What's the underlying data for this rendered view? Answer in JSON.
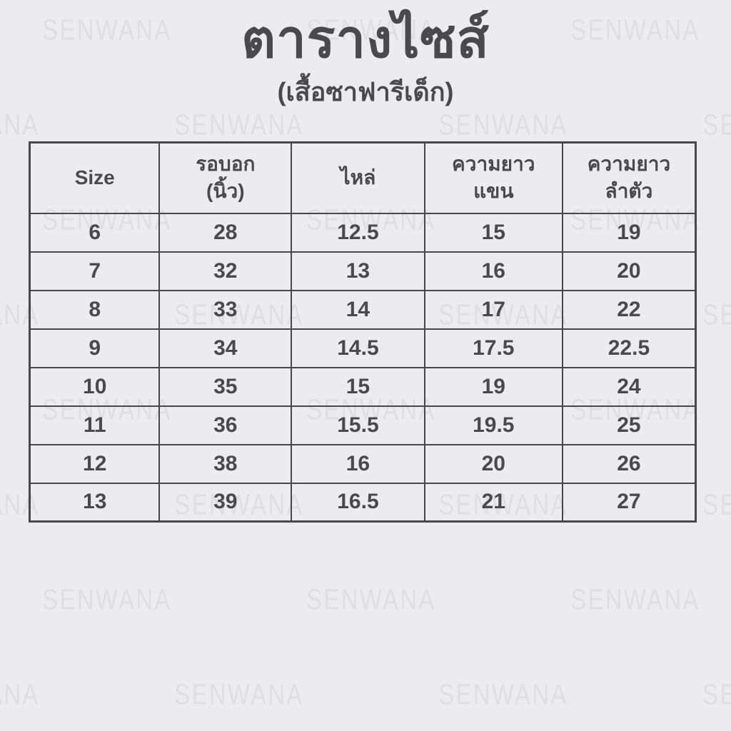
{
  "page": {
    "title": "ตารางไซส์",
    "subtitle": "(เสื้อซาฟารีเด็ก)",
    "background_color": "#ececee",
    "text_color": "#4a4a4d",
    "border_color": "#48484a"
  },
  "watermark": {
    "text": "SENWANA",
    "color": "#dfdfe2"
  },
  "size_table": {
    "headers": [
      "Size",
      "รอบอก\n(นิ้ว)",
      "ไหล่",
      "ความยาว\nแขน",
      "ความยาว\nลำตัว"
    ],
    "rows": [
      [
        "6",
        "28",
        "12.5",
        "15",
        "19"
      ],
      [
        "7",
        "32",
        "13",
        "16",
        "20"
      ],
      [
        "8",
        "33",
        "14",
        "17",
        "22"
      ],
      [
        "9",
        "34",
        "14.5",
        "17.5",
        "22.5"
      ],
      [
        "10",
        "35",
        "15",
        "19",
        "24"
      ],
      [
        "11",
        "36",
        "15.5",
        "19.5",
        "25"
      ],
      [
        "12",
        "38",
        "16",
        "20",
        "26"
      ],
      [
        "13",
        "39",
        "16.5",
        "21",
        "27"
      ]
    ]
  },
  "chart_data": {
    "type": "table",
    "title": "ตารางไซส์",
    "subtitle": "(เสื้อซาฟารีเด็ก)",
    "columns": [
      "Size",
      "รอบอก (นิ้ว)",
      "ไหล่",
      "ความยาวแขน",
      "ความยาวลำตัว"
    ],
    "rows": [
      [
        6,
        28,
        12.5,
        15,
        19
      ],
      [
        7,
        32,
        13,
        16,
        20
      ],
      [
        8,
        33,
        14,
        17,
        22
      ],
      [
        9,
        34,
        14.5,
        17.5,
        22.5
      ],
      [
        10,
        35,
        15,
        19,
        24
      ],
      [
        11,
        36,
        15.5,
        19.5,
        25
      ],
      [
        12,
        38,
        16,
        20,
        26
      ],
      [
        13,
        39,
        16.5,
        21,
        27
      ]
    ]
  }
}
